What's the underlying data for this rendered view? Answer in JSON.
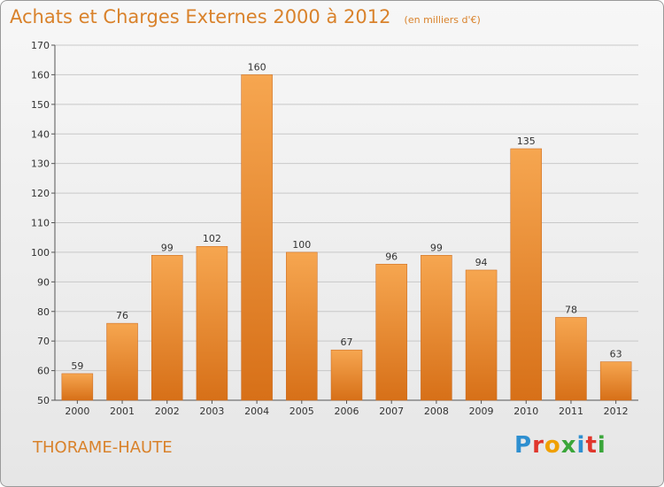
{
  "header": {
    "title": "Achats et Charges Externes 2000 à 2012",
    "subtitle": "(en milliers d'€)"
  },
  "footer": {
    "commune": "THORAME-HAUTE",
    "brand": "Proxiti"
  },
  "colors": {
    "accent": "#d9822b",
    "bar_top": "#f5a24e",
    "bar_bottom": "#d9741c",
    "grid": "#c8c8c8"
  },
  "chart_data": {
    "type": "bar",
    "categories": [
      "2000",
      "2001",
      "2002",
      "2003",
      "2004",
      "2005",
      "2006",
      "2007",
      "2008",
      "2009",
      "2010",
      "2011",
      "2012"
    ],
    "values": [
      59,
      76,
      99,
      102,
      160,
      100,
      67,
      96,
      99,
      94,
      135,
      78,
      63
    ],
    "ylim": [
      50,
      170
    ],
    "yticks": [
      50,
      60,
      70,
      80,
      90,
      100,
      110,
      120,
      130,
      140,
      150,
      160,
      170
    ],
    "grid": true,
    "data_labels": true
  }
}
